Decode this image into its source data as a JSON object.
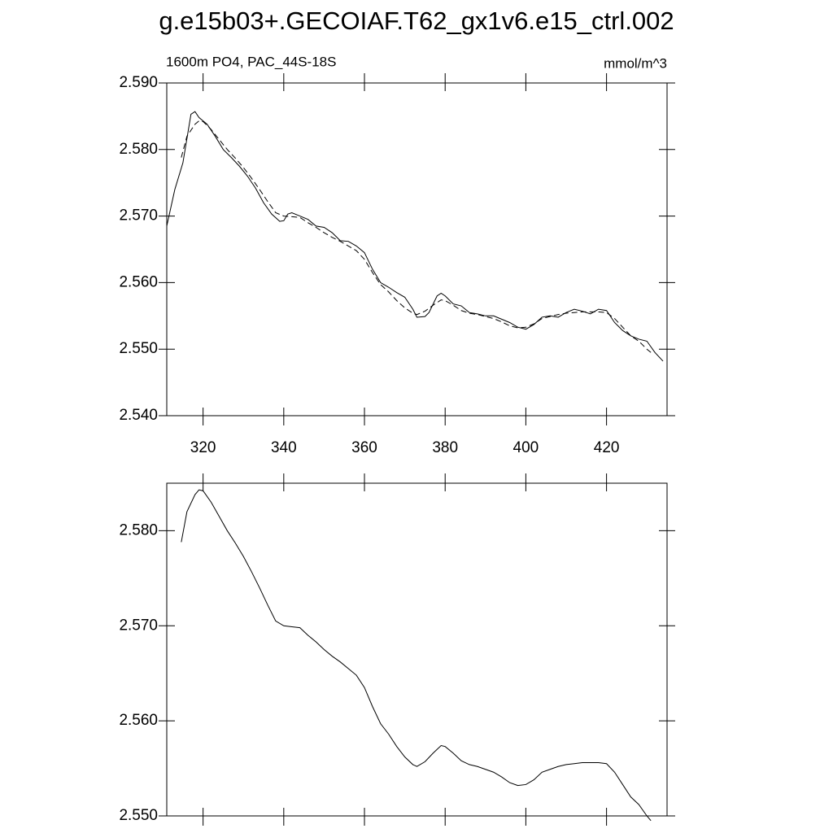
{
  "chart_data": [
    {
      "type": "line",
      "title": "g.e15b03+.GECOIAF.T62_gx1v6.e15_ctrl.002",
      "left_label": "1600m PO4, PAC_44S-18S",
      "right_label": "mmol/m^3",
      "xlim": [
        311,
        435
      ],
      "xticks": [
        320,
        340,
        360,
        380,
        400,
        420
      ],
      "xtick_labels": true,
      "ylim": [
        2.54,
        2.59
      ],
      "yticks": [
        {
          "value": 2.54,
          "label": "2.540"
        },
        {
          "value": 2.55,
          "label": "2.550"
        },
        {
          "value": 2.56,
          "label": "2.560"
        },
        {
          "value": 2.57,
          "label": "2.570"
        },
        {
          "value": 2.58,
          "label": "2.580"
        },
        {
          "value": 2.59,
          "label": "2.590"
        }
      ],
      "series": [
        {
          "color": "#000000",
          "dash": false,
          "x": [
            311,
            313,
            315,
            317,
            318,
            319,
            321,
            323,
            325,
            327,
            329,
            331,
            333,
            335,
            337,
            339,
            340,
            341,
            342,
            344,
            346,
            348,
            350,
            352,
            354,
            356,
            358,
            360,
            362,
            364,
            366,
            368,
            370,
            372,
            373,
            375,
            376,
            378,
            379,
            380,
            382,
            384,
            386,
            388,
            390,
            392,
            394,
            396,
            398,
            400,
            402,
            404,
            406,
            408,
            410,
            412,
            414,
            416,
            418,
            420,
            422,
            424,
            426,
            428,
            430,
            432,
            434
          ],
          "values": [
            2.5685,
            2.574,
            2.578,
            2.5853,
            2.5857,
            2.5848,
            2.5838,
            2.582,
            2.58,
            2.5788,
            2.5775,
            2.576,
            2.5742,
            2.572,
            2.5703,
            2.5692,
            2.5693,
            2.5703,
            2.5705,
            2.57,
            2.5695,
            2.5685,
            2.5683,
            2.5675,
            2.5663,
            2.5662,
            2.5655,
            2.5645,
            2.562,
            2.56,
            2.5593,
            2.5585,
            2.5578,
            2.556,
            2.5548,
            2.5549,
            2.5555,
            2.558,
            2.5584,
            2.558,
            2.5568,
            2.5565,
            2.5555,
            2.5553,
            2.555,
            2.555,
            2.5545,
            2.554,
            2.5533,
            2.553,
            2.5537,
            2.5548,
            2.555,
            2.5548,
            2.5555,
            2.556,
            2.5557,
            2.5553,
            2.556,
            2.5558,
            2.554,
            2.5528,
            2.552,
            2.5515,
            2.5512,
            2.5495,
            2.5482
          ]
        },
        {
          "color": "#000000",
          "dash": true,
          "x": [
            314.6,
            316,
            318,
            319,
            320,
            322,
            324,
            326,
            328,
            330,
            332,
            334,
            336,
            338,
            340,
            342,
            344,
            346,
            348,
            350,
            352,
            354,
            356,
            358,
            360,
            362,
            364,
            366,
            368,
            370,
            372,
            373,
            375,
            377,
            379,
            380,
            382,
            384,
            386,
            388,
            390,
            392,
            394,
            396,
            398,
            400,
            402,
            404,
            406,
            408,
            410,
            412,
            414,
            416,
            418,
            420,
            422,
            424,
            426,
            428,
            430,
            431
          ],
          "values": [
            2.5788,
            2.582,
            2.5838,
            2.5843,
            2.5842,
            2.583,
            2.5815,
            2.58,
            2.5787,
            2.5773,
            2.5757,
            2.574,
            2.5722,
            2.5705,
            2.57,
            2.5699,
            2.5698,
            2.569,
            2.5683,
            2.5675,
            2.5668,
            2.5662,
            2.5655,
            2.5648,
            2.5635,
            2.5615,
            2.5597,
            2.5586,
            2.5573,
            2.5562,
            2.5554,
            2.5552,
            2.5557,
            2.5566,
            2.5574,
            2.5573,
            2.5566,
            2.5558,
            2.5554,
            2.5552,
            2.5549,
            2.5546,
            2.5541,
            2.5535,
            2.5532,
            2.5533,
            2.5538,
            2.5546,
            2.5549,
            2.5552,
            2.5554,
            2.5555,
            2.5556,
            2.5556,
            2.5556,
            2.5555,
            2.5546,
            2.5533,
            2.552,
            2.5512,
            2.55,
            2.5495
          ]
        }
      ]
    },
    {
      "type": "line",
      "xlim": [
        311,
        435
      ],
      "xticks": [
        320,
        340,
        360,
        380,
        400,
        420
      ],
      "xtick_labels": false,
      "ylim": [
        2.55,
        2.585
      ],
      "yticks": [
        {
          "value": 2.55,
          "label": "2.550"
        },
        {
          "value": 2.56,
          "label": "2.560"
        },
        {
          "value": 2.57,
          "label": "2.570"
        },
        {
          "value": 2.58,
          "label": "2.580"
        }
      ],
      "series": [
        {
          "color": "#000000",
          "dash": false,
          "x": [
            314.6,
            316,
            318,
            319,
            320,
            322,
            324,
            326,
            328,
            330,
            332,
            334,
            336,
            338,
            340,
            342,
            344,
            346,
            348,
            350,
            352,
            354,
            356,
            358,
            360,
            362,
            364,
            366,
            368,
            370,
            372,
            373,
            375,
            377,
            379,
            380,
            382,
            384,
            386,
            388,
            390,
            392,
            394,
            396,
            398,
            400,
            402,
            404,
            406,
            408,
            410,
            412,
            414,
            416,
            418,
            420,
            422,
            424,
            426,
            428,
            430,
            431
          ],
          "values": [
            2.5788,
            2.582,
            2.5838,
            2.5843,
            2.5842,
            2.583,
            2.5815,
            2.58,
            2.5787,
            2.5773,
            2.5757,
            2.574,
            2.5722,
            2.5705,
            2.57,
            2.5699,
            2.5698,
            2.569,
            2.5683,
            2.5675,
            2.5668,
            2.5662,
            2.5655,
            2.5648,
            2.5635,
            2.5615,
            2.5597,
            2.5586,
            2.5573,
            2.5562,
            2.5554,
            2.5552,
            2.5557,
            2.5566,
            2.5574,
            2.5573,
            2.5566,
            2.5558,
            2.5554,
            2.5552,
            2.5549,
            2.5546,
            2.5541,
            2.5535,
            2.5532,
            2.5533,
            2.5538,
            2.5546,
            2.5549,
            2.5552,
            2.5554,
            2.5555,
            2.5556,
            2.5556,
            2.5556,
            2.5555,
            2.5546,
            2.5533,
            2.552,
            2.5512,
            2.55,
            2.5495
          ]
        }
      ]
    }
  ]
}
